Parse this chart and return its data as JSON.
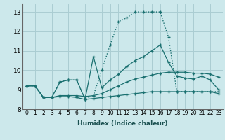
{
  "background_color": "#cce8eb",
  "grid_color": "#aacdd2",
  "line_color": "#1a7070",
  "xlabel": "Humidex (Indice chaleur)",
  "xlim": [
    -0.5,
    23.5
  ],
  "ylim": [
    8.0,
    13.4
  ],
  "yticks": [
    8,
    9,
    10,
    11,
    12,
    13
  ],
  "xticks": [
    0,
    1,
    2,
    3,
    4,
    5,
    6,
    7,
    8,
    9,
    10,
    11,
    12,
    13,
    14,
    15,
    16,
    17,
    18,
    19,
    20,
    21,
    22,
    23
  ],
  "series": [
    {
      "x": [
        0,
        1,
        2,
        3,
        4,
        5,
        6,
        7,
        8,
        9,
        10,
        11,
        12,
        13,
        14,
        15,
        16,
        17,
        18,
        19,
        20,
        21,
        22,
        23
      ],
      "y": [
        9.2,
        9.2,
        8.6,
        8.6,
        9.4,
        9.5,
        9.5,
        8.5,
        8.7,
        10.0,
        11.3,
        12.5,
        12.7,
        13.0,
        13.0,
        13.0,
        13.0,
        11.7,
        8.9,
        8.9,
        8.9,
        8.9,
        8.9,
        8.9
      ],
      "style": "dotted"
    },
    {
      "x": [
        0,
        1,
        2,
        3,
        4,
        5,
        6,
        7,
        8,
        9,
        10,
        11,
        12,
        13,
        14,
        15,
        16,
        17,
        18,
        19,
        20,
        21,
        22,
        23
      ],
      "y": [
        9.2,
        9.2,
        8.6,
        8.6,
        9.4,
        9.5,
        9.5,
        8.5,
        10.7,
        9.1,
        9.5,
        9.8,
        10.2,
        10.5,
        10.7,
        11.0,
        11.3,
        10.4,
        9.7,
        9.6,
        9.55,
        9.7,
        9.5,
        9.0
      ],
      "style": "solid"
    },
    {
      "x": [
        0,
        1,
        2,
        3,
        4,
        5,
        6,
        7,
        8,
        9,
        10,
        11,
        12,
        13,
        14,
        15,
        16,
        17,
        18,
        19,
        20,
        21,
        22,
        23
      ],
      "y": [
        9.2,
        9.2,
        8.6,
        8.6,
        8.7,
        8.7,
        8.7,
        8.65,
        8.7,
        8.8,
        9.0,
        9.2,
        9.4,
        9.55,
        9.65,
        9.75,
        9.85,
        9.9,
        9.9,
        9.9,
        9.85,
        9.85,
        9.8,
        9.65
      ],
      "style": "solid"
    },
    {
      "x": [
        0,
        1,
        2,
        3,
        4,
        5,
        6,
        7,
        8,
        9,
        10,
        11,
        12,
        13,
        14,
        15,
        16,
        17,
        18,
        19,
        20,
        21,
        22,
        23
      ],
      "y": [
        9.2,
        9.2,
        8.6,
        8.6,
        8.65,
        8.65,
        8.6,
        8.5,
        8.55,
        8.6,
        8.65,
        8.7,
        8.75,
        8.8,
        8.85,
        8.9,
        8.9,
        8.9,
        8.9,
        8.9,
        8.9,
        8.9,
        8.9,
        8.8
      ],
      "style": "solid"
    }
  ]
}
